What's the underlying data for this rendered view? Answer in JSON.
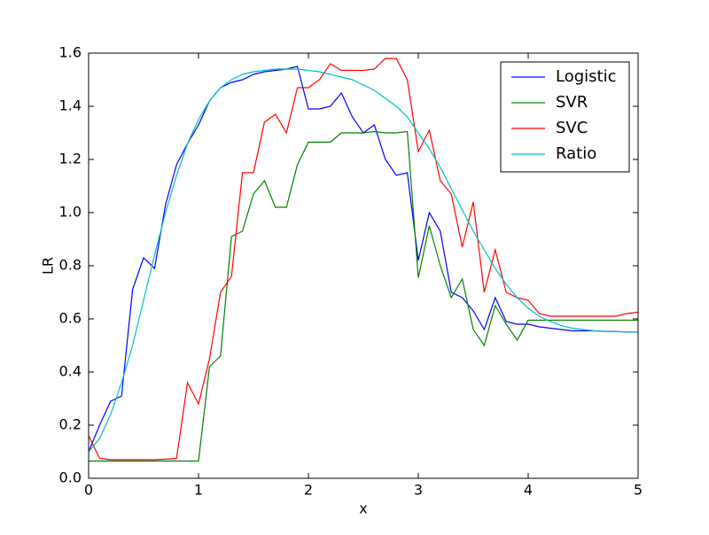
{
  "chart_data": {
    "type": "line",
    "xlabel": "x",
    "ylabel": "LR",
    "x": [
      0,
      0.1,
      0.2,
      0.3,
      0.4,
      0.5,
      0.6,
      0.7,
      0.8,
      0.9,
      1.0,
      1.1,
      1.2,
      1.3,
      1.4,
      1.5,
      1.6,
      1.7,
      1.8,
      1.9,
      2.0,
      2.1,
      2.2,
      2.3,
      2.4,
      2.5,
      2.6,
      2.7,
      2.8,
      2.9,
      3.0,
      3.1,
      3.2,
      3.3,
      3.4,
      3.5,
      3.6,
      3.7,
      3.8,
      3.9,
      4.0,
      4.1,
      4.2,
      4.3,
      4.4,
      4.5,
      4.6,
      4.7,
      4.8,
      4.9,
      5.0
    ],
    "series": [
      {
        "name": "Logistic",
        "color": "#0000ff",
        "values": [
          0.1,
          0.2,
          0.29,
          0.31,
          0.71,
          0.83,
          0.79,
          1.03,
          1.18,
          1.26,
          1.33,
          1.42,
          1.47,
          1.49,
          1.5,
          1.52,
          1.53,
          1.535,
          1.54,
          1.55,
          1.39,
          1.39,
          1.4,
          1.45,
          1.36,
          1.3,
          1.33,
          1.2,
          1.14,
          1.15,
          0.82,
          1.0,
          0.93,
          0.7,
          0.68,
          0.63,
          0.56,
          0.68,
          0.59,
          0.58,
          0.58,
          0.57,
          0.565,
          0.56,
          0.555,
          0.555,
          0.555,
          0.553,
          0.552,
          0.551,
          0.55
        ]
      },
      {
        "name": "SVR",
        "color": "#008000",
        "values": [
          0.065,
          0.065,
          0.065,
          0.065,
          0.065,
          0.065,
          0.065,
          0.065,
          0.065,
          0.065,
          0.065,
          0.42,
          0.46,
          0.91,
          0.93,
          1.07,
          1.12,
          1.02,
          1.02,
          1.18,
          1.265,
          1.265,
          1.265,
          1.3,
          1.3,
          1.3,
          1.305,
          1.3,
          1.3,
          1.305,
          0.755,
          0.95,
          0.8,
          0.68,
          0.75,
          0.56,
          0.5,
          0.65,
          0.58,
          0.52,
          0.595,
          0.595,
          0.595,
          0.595,
          0.595,
          0.595,
          0.595,
          0.595,
          0.595,
          0.595,
          0.595
        ]
      },
      {
        "name": "SVC",
        "color": "#ff0000",
        "values": [
          0.16,
          0.075,
          0.07,
          0.07,
          0.07,
          0.07,
          0.07,
          0.072,
          0.075,
          0.36,
          0.28,
          0.45,
          0.7,
          0.76,
          1.15,
          1.15,
          1.34,
          1.37,
          1.3,
          1.47,
          1.47,
          1.5,
          1.56,
          1.535,
          1.535,
          1.535,
          1.54,
          1.58,
          1.58,
          1.5,
          1.23,
          1.31,
          1.12,
          1.07,
          0.87,
          1.04,
          0.7,
          0.86,
          0.7,
          0.68,
          0.67,
          0.62,
          0.61,
          0.61,
          0.61,
          0.61,
          0.61,
          0.61,
          0.61,
          0.62,
          0.625
        ]
      },
      {
        "name": "Ratio",
        "color": "#00bfbf",
        "values": [
          0.1,
          0.15,
          0.24,
          0.36,
          0.5,
          0.67,
          0.84,
          1.0,
          1.14,
          1.26,
          1.35,
          1.42,
          1.47,
          1.5,
          1.52,
          1.53,
          1.535,
          1.54,
          1.54,
          1.54,
          1.535,
          1.53,
          1.52,
          1.51,
          1.5,
          1.48,
          1.46,
          1.43,
          1.4,
          1.36,
          1.3,
          1.24,
          1.17,
          1.09,
          1.01,
          0.93,
          0.86,
          0.79,
          0.73,
          0.68,
          0.64,
          0.61,
          0.59,
          0.575,
          0.565,
          0.56,
          0.555,
          0.553,
          0.552,
          0.551,
          0.55
        ]
      }
    ],
    "xlim": [
      0,
      5
    ],
    "ylim": [
      0,
      1.6
    ],
    "xticks": [
      0,
      1,
      2,
      3,
      4,
      5
    ],
    "yticks": [
      {
        "value": 0,
        "label": "0.0"
      },
      0.2,
      0.4,
      0.6,
      0.8,
      {
        "value": 1,
        "label": "1.0"
      },
      1.2,
      1.4,
      1.6
    ],
    "legend": "upper right"
  }
}
